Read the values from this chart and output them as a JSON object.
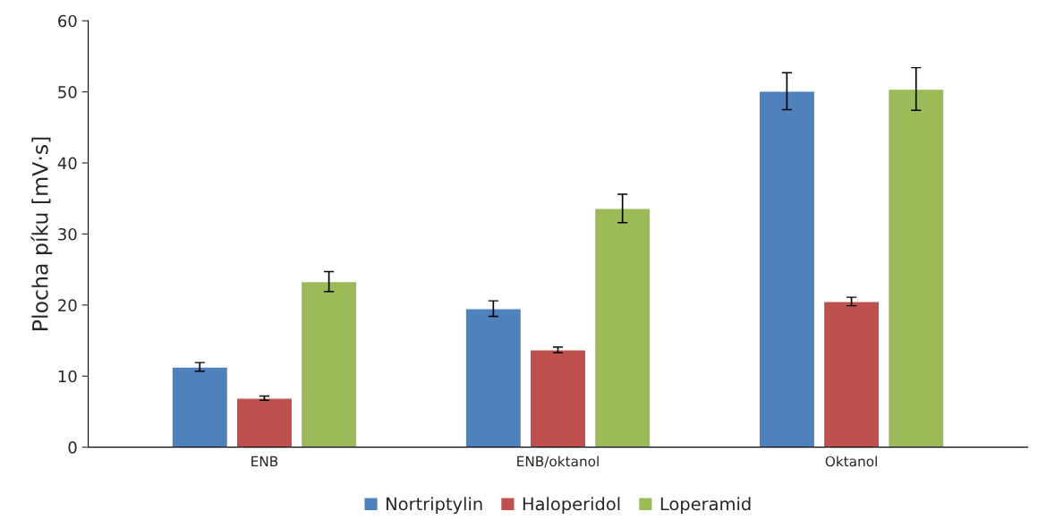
{
  "chart_data": {
    "type": "bar",
    "ylabel": "Plocha píku [mV·s]",
    "categories": [
      "ENB",
      "ENB/oktanol",
      "Oktanol"
    ],
    "series": [
      {
        "name": "Nortriptylin",
        "color": "#4f81bd",
        "values": [
          11.3,
          19.5,
          50.1
        ],
        "errors": [
          0.6,
          1.1,
          2.6
        ]
      },
      {
        "name": "Haloperidol",
        "color": "#c0504d",
        "values": [
          6.9,
          13.7,
          20.5
        ],
        "errors": [
          0.3,
          0.4,
          0.6
        ]
      },
      {
        "name": "Loperamid",
        "color": "#9bbb59",
        "values": [
          23.3,
          33.6,
          50.4
        ],
        "errors": [
          1.4,
          2.0,
          3.0
        ]
      }
    ],
    "ylim": [
      0,
      60
    ],
    "yticks": [
      0,
      10,
      20,
      30,
      40,
      50,
      60
    ],
    "grid": false,
    "legend": "bottom"
  }
}
